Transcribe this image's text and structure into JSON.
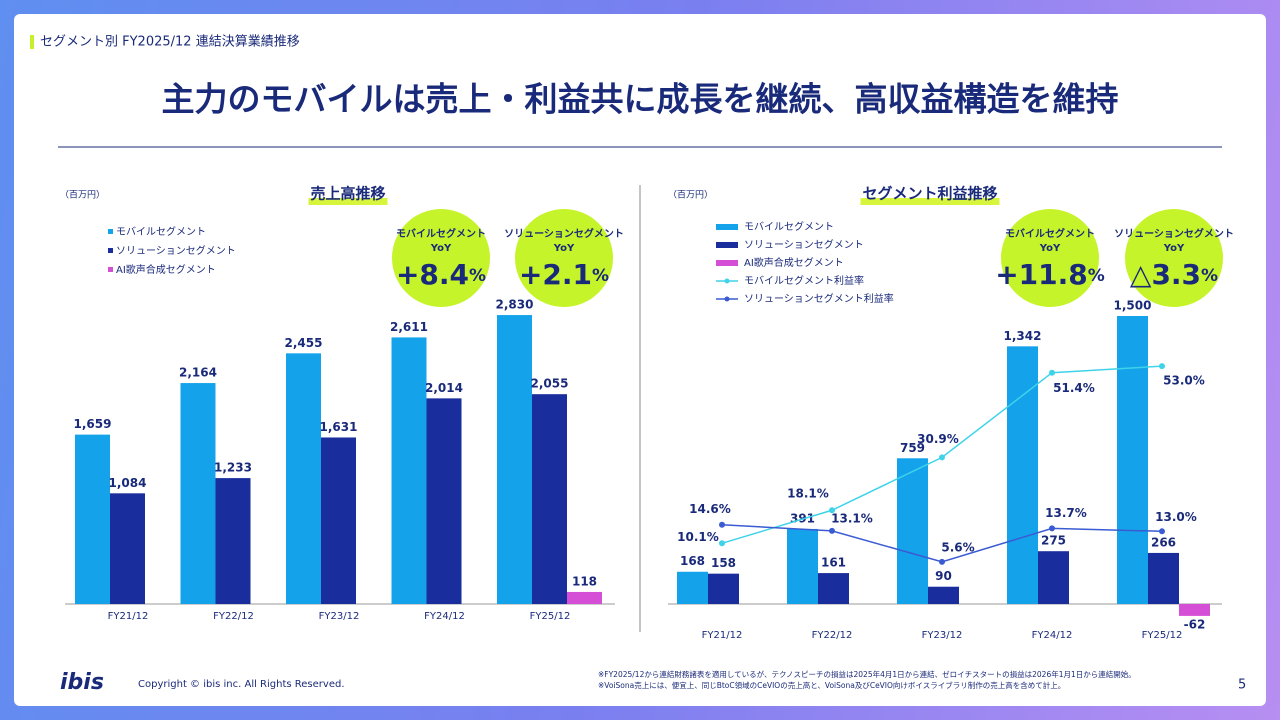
{
  "header": {
    "section": "セグメント別 FY2025/12 連結決算業績推移",
    "title": "主力のモバイルは売上・利益共に成長を継続、高収益構造を維持"
  },
  "chart_data": [
    {
      "type": "bar",
      "title": "売上高推移",
      "unit": "（百万円）",
      "categories": [
        "FY21/12",
        "FY22/12",
        "FY23/12",
        "FY24/12",
        "FY25/12"
      ],
      "series": [
        {
          "name": "モバイルセグメント",
          "color": "#14a3ea",
          "values": [
            1659,
            2164,
            2455,
            2611,
            2830
          ],
          "value_labels": [
            "1,659",
            "2,164",
            "2,455",
            "2,611",
            "2,830"
          ]
        },
        {
          "name": "ソリューションセグメント",
          "color": "#1a2d9c",
          "values": [
            1084,
            1233,
            1631,
            2014,
            2055
          ],
          "value_labels": [
            "1,084",
            "1,233",
            "1,631",
            "2,014",
            "2,055"
          ]
        },
        {
          "name": "AI歌声合成セグメント",
          "color": "#d54fd6",
          "values": [
            null,
            null,
            null,
            null,
            118
          ]
        }
      ],
      "annotations": [
        {
          "segment": "モバイルセグメント",
          "label": "YoY",
          "value": "+8.4",
          "unit": "%"
        },
        {
          "segment": "ソリューションセグメント",
          "label": "YoY",
          "value": "+2.1",
          "unit": "%"
        }
      ]
    },
    {
      "type": "bar",
      "title": "セグメント利益推移",
      "unit": "（百万円）",
      "categories": [
        "FY21/12",
        "FY22/12",
        "FY23/12",
        "FY24/12",
        "FY25/12"
      ],
      "series": [
        {
          "name": "モバイルセグメント",
          "color": "#14a3ea",
          "values": [
            168,
            391,
            759,
            1342,
            1500
          ],
          "value_labels": [
            "168",
            "391",
            "759",
            "1,342",
            "1,500"
          ]
        },
        {
          "name": "ソリューションセグメント",
          "color": "#1a2d9c",
          "values": [
            158,
            161,
            90,
            275,
            266
          ]
        },
        {
          "name": "AI歌声合成セグメント",
          "color": "#d54fd6",
          "values": [
            null,
            null,
            null,
            null,
            -62
          ]
        },
        {
          "name": "モバイルセグメント利益率",
          "type": "line",
          "axis": "y2",
          "color": "#3fd3ea",
          "values": [
            10.1,
            18.1,
            30.9,
            51.4,
            53.0
          ],
          "value_labels": [
            "10.1%",
            "18.1%",
            "30.9%",
            "51.4%",
            "53.0%"
          ]
        },
        {
          "name": "ソリューションセグメント利益率",
          "type": "line",
          "axis": "y2",
          "color": "#3a5bd2",
          "values": [
            14.6,
            13.1,
            5.6,
            13.7,
            13.0
          ],
          "value_labels": [
            "14.6%",
            "13.1%",
            "5.6%",
            "13.7%",
            "13.0%"
          ]
        }
      ],
      "annotations": [
        {
          "segment": "モバイルセグメント",
          "label": "YoY",
          "value": "+11.8",
          "unit": "%"
        },
        {
          "segment": "ソリューションセグメント",
          "label": "YoY",
          "value": "△3.3",
          "unit": "%"
        }
      ]
    }
  ],
  "footer": {
    "logo": "ibis",
    "copyright": "Copyright © ibis inc. All Rights Reserved.",
    "page": "5",
    "notes": [
      "※FY2025/12から連結財務諸表を適用しているが、テクノスピーチの損益は2025年4月1日から連結、ゼロイチスタートの損益は2026年1月1日から連結開始。",
      "※VoiSona売上には、便宜上、同じBtoC領域のCeVIOの売上高と、VoiSona及びCeVIO向けボイスライブラリ制作の売上高を含めて計上。"
    ]
  }
}
